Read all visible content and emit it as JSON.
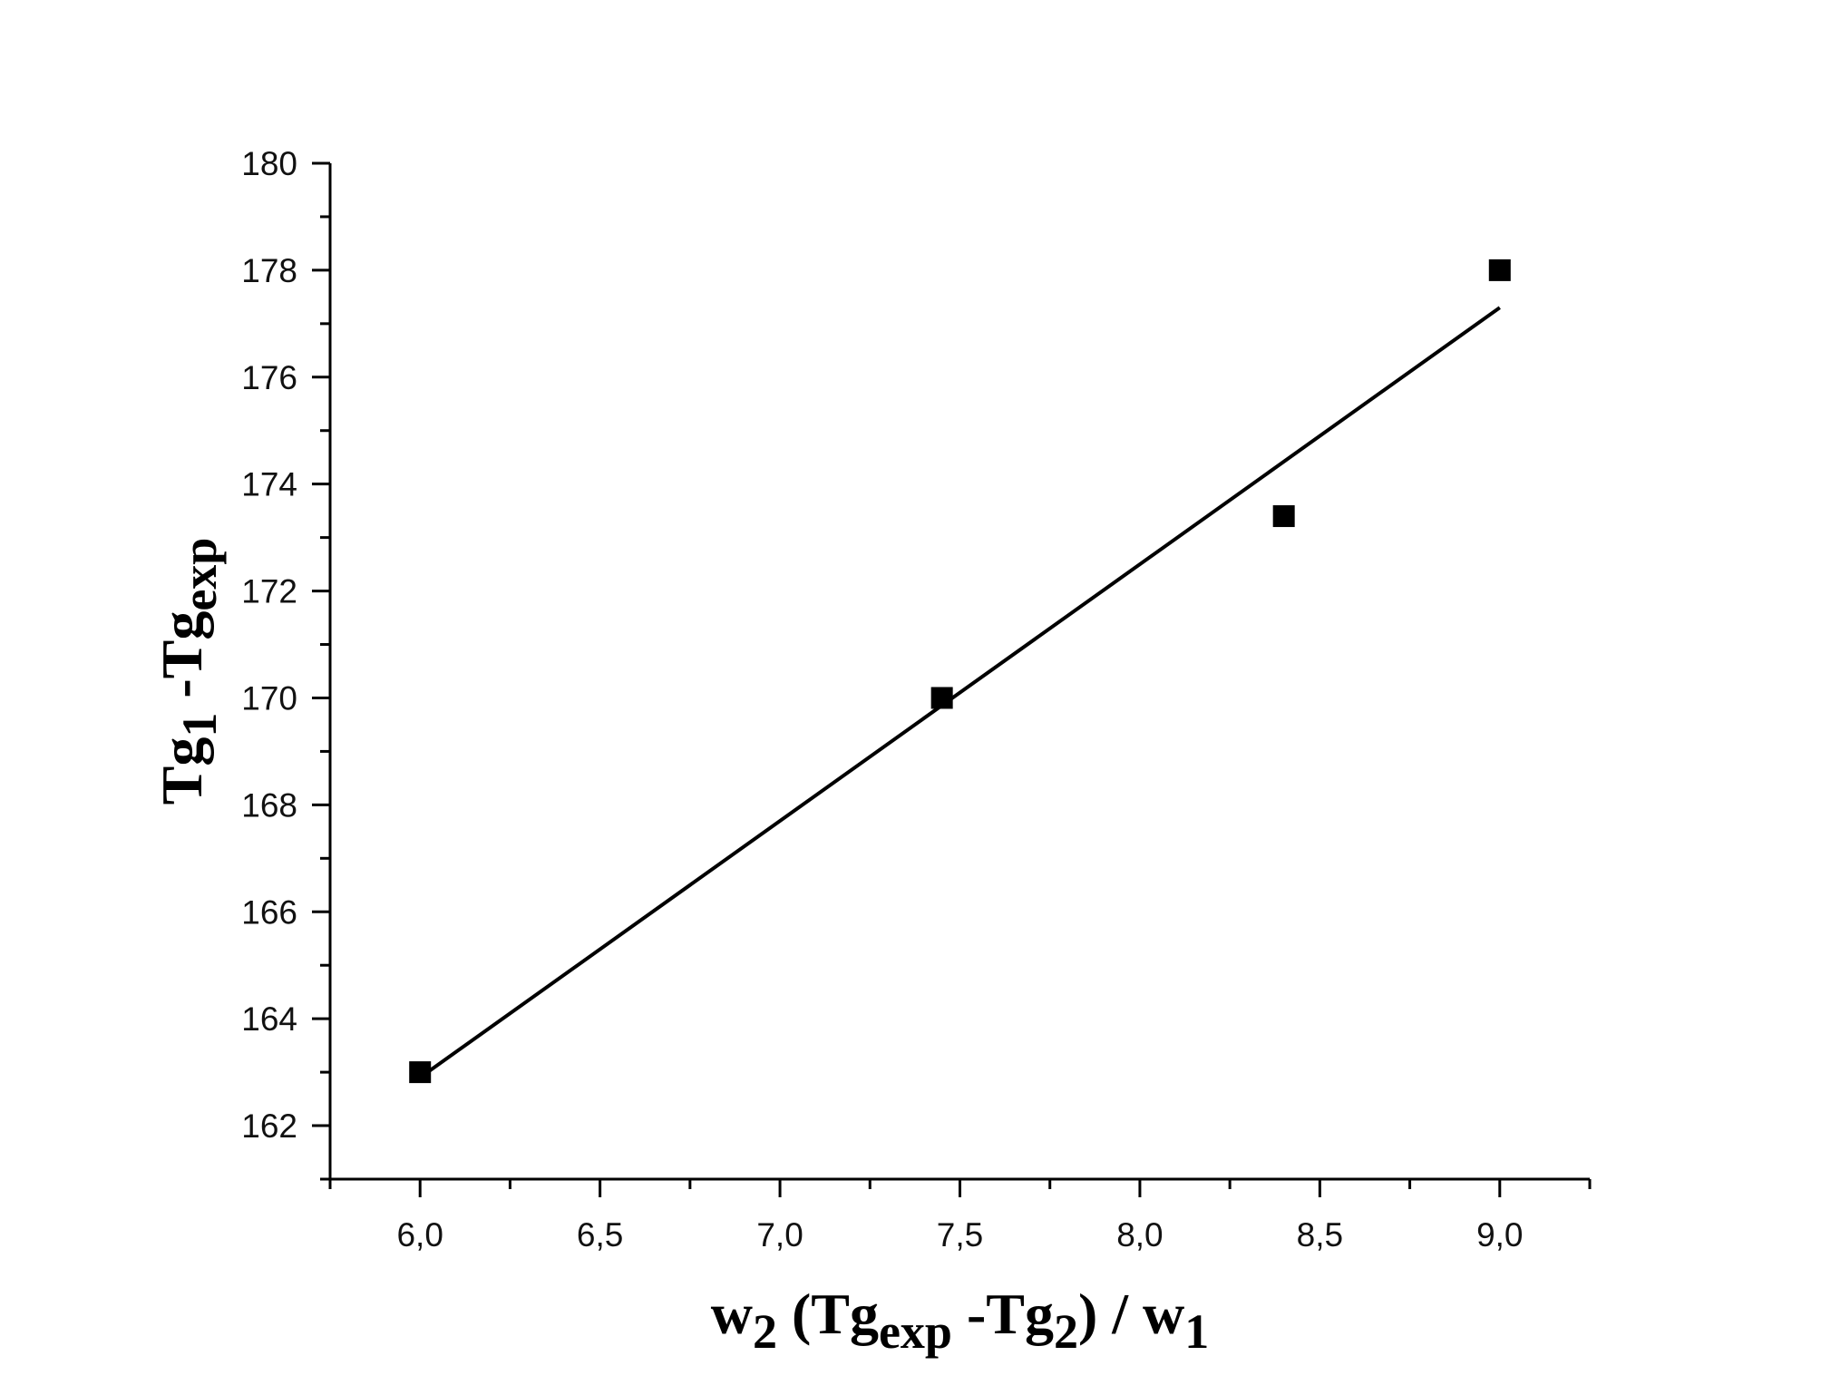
{
  "chart_data": {
    "type": "scatter",
    "title": "",
    "xlabel": {
      "parts": [
        {
          "text": "w",
          "sub": false
        },
        {
          "text": "2",
          "sub": true
        },
        {
          "text": " (Tg",
          "sub": false
        },
        {
          "text": "exp",
          "sub": true
        },
        {
          "text": " -Tg",
          "sub": false
        },
        {
          "text": "2",
          "sub": true
        },
        {
          "text": ") / w",
          "sub": false
        },
        {
          "text": "1",
          "sub": true
        }
      ]
    },
    "ylabel": {
      "parts": [
        {
          "text": "Tg",
          "sub": false
        },
        {
          "text": "1",
          "sub": true
        },
        {
          "text": " -Tg",
          "sub": false
        },
        {
          "text": "exp",
          "sub": true
        }
      ]
    },
    "xlim": [
      5.75,
      9.25
    ],
    "ylim": [
      161,
      180
    ],
    "x_ticks": [
      6.0,
      6.5,
      7.0,
      7.5,
      8.0,
      8.5,
      9.0
    ],
    "x_tick_labels": [
      "6,0",
      "6,5",
      "7,0",
      "7,5",
      "8,0",
      "8,5",
      "9,0"
    ],
    "y_ticks": [
      162,
      164,
      166,
      168,
      170,
      172,
      174,
      176,
      178,
      180
    ],
    "y_tick_labels": [
      "162",
      "164",
      "166",
      "168",
      "170",
      "172",
      "174",
      "176",
      "178",
      "180"
    ],
    "grid": false,
    "legend": "none",
    "marker": "square",
    "colors": {
      "marker": "#000000",
      "fit_line": "#000000",
      "axis": "#000000"
    },
    "series": [
      {
        "points": [
          {
            "x": 6.0,
            "y": 163.0
          },
          {
            "x": 7.45,
            "y": 170.0
          },
          {
            "x": 8.4,
            "y": 173.4
          },
          {
            "x": 9.0,
            "y": 178.0
          }
        ]
      }
    ],
    "fit_line": {
      "type": "linear",
      "x_start": 6.0,
      "y_start": 162.9,
      "x_end": 9.0,
      "y_end": 177.3
    }
  }
}
